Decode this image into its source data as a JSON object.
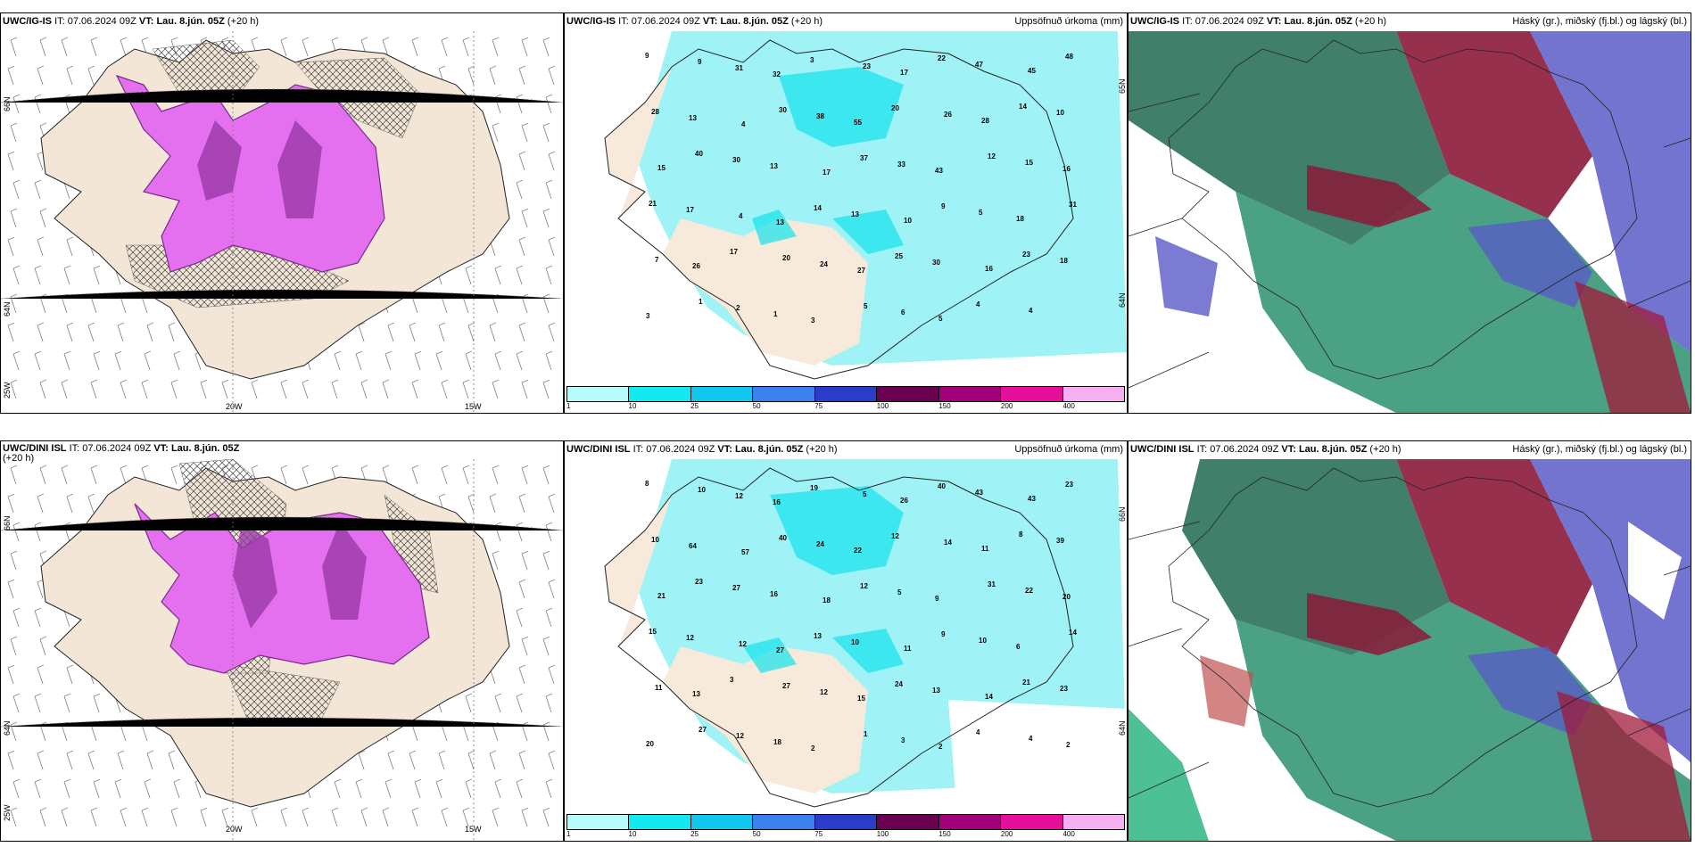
{
  "rows": [
    {
      "id": "top",
      "panels": [
        {
          "model": "UWC/IG-IS",
          "it_label": "IT:",
          "it_value": "07.06.2024 09Z",
          "vt_label": "VT:",
          "vt_value": "Lau. 8.jún. 05Z",
          "lead": "(+20 h)",
          "right_title": "",
          "lon_labels": [
            "20W",
            "15W"
          ],
          "lat_labels": [
            "66N",
            "64N",
            "25W"
          ]
        },
        {
          "model": "UWC/IG-IS",
          "it_label": "IT:",
          "it_value": "07.06.2024 09Z",
          "vt_label": "VT:",
          "vt_value": "Lau. 8.jún. 05Z",
          "lead": "(+20 h)",
          "right_title": "Uppsöfnuð úrkoma (mm)",
          "lat_labels": [
            "65N",
            "64N"
          ],
          "values": [
            "9",
            "9",
            "31",
            "32",
            "3",
            "23",
            "17",
            "22",
            "47",
            "45",
            "48",
            "28",
            "13",
            "4",
            "30",
            "38",
            "55",
            "20",
            "26",
            "28",
            "14",
            "10",
            "15",
            "40",
            "30",
            "13",
            "17",
            "37",
            "33",
            "43",
            "12",
            "15",
            "16",
            "21",
            "17",
            "4",
            "13",
            "14",
            "13",
            "10",
            "9",
            "5",
            "18",
            "31",
            "7",
            "26",
            "17",
            "20",
            "24",
            "27",
            "25",
            "30",
            "16",
            "23",
            "18",
            "3",
            "1",
            "2",
            "1",
            "3",
            "5",
            "6",
            "5",
            "4",
            "4"
          ]
        },
        {
          "model": "UWC/IG-IS",
          "it_label": "IT:",
          "it_value": "07.06.2024 09Z",
          "vt_label": "VT:",
          "vt_value": "Lau. 8.jún. 05Z",
          "lead": "(+20 h)",
          "right_title": "Háský (gr.), miðský (fj.bl.) og lágský (bl.)"
        }
      ]
    },
    {
      "id": "bottom",
      "panels": [
        {
          "model": "UWC/DINI ISL",
          "it_label": "IT:",
          "it_value": "07.06.2024 09Z",
          "vt_label": "VT:",
          "vt_value": "Lau. 8.jún. 05Z",
          "lead": "(+20 h)",
          "right_title": "",
          "lon_labels": [
            "20W",
            "15W"
          ],
          "lat_labels": [
            "66N",
            "64N",
            "25W"
          ]
        },
        {
          "model": "UWC/DINI ISL",
          "it_label": "IT:",
          "it_value": "07.06.2024 09Z",
          "vt_label": "VT:",
          "vt_value": "Lau. 8.jún. 05Z",
          "lead": "(+20 h)",
          "right_title": "Uppsöfnuð úrkoma (mm)",
          "lat_labels": [
            "66N",
            "64N"
          ],
          "values": [
            "8",
            "10",
            "12",
            "16",
            "19",
            "5",
            "26",
            "40",
            "43",
            "43",
            "23",
            "10",
            "64",
            "57",
            "40",
            "24",
            "22",
            "12",
            "14",
            "11",
            "8",
            "39",
            "21",
            "23",
            "27",
            "16",
            "18",
            "12",
            "5",
            "9",
            "31",
            "22",
            "20",
            "15",
            "12",
            "12",
            "27",
            "13",
            "10",
            "11",
            "9",
            "10",
            "6",
            "14",
            "11",
            "13",
            "3",
            "27",
            "12",
            "15",
            "24",
            "13",
            "14",
            "21",
            "23",
            "20",
            "27",
            "12",
            "18",
            "2",
            "1",
            "3",
            "2",
            "4",
            "4",
            "2"
          ]
        },
        {
          "model": "UWC/DINI ISL",
          "it_label": "IT:",
          "it_value": "07.06.2024 09Z",
          "vt_label": "VT:",
          "vt_value": "Lau. 8.jún. 05Z",
          "lead": "(+20 h)",
          "right_title": "Háský (gr.), miðský (fj.bl.) og lágský (bl.)"
        }
      ]
    }
  ],
  "legend": {
    "ticks": [
      "1",
      "10",
      "25",
      "50",
      "75",
      "100",
      "150",
      "200",
      "400"
    ],
    "colors": [
      "#b8fbfb",
      "#14e8f0",
      "#12c6ee",
      "#3c80ee",
      "#2a3cc8",
      "#6a0050",
      "#a0007a",
      "#e4109c",
      "#f4b0f0"
    ]
  },
  "colors": {
    "land": "#f3e6d6",
    "precip": "#9ff2f5",
    "precip_heavy": "#14e2ee",
    "snow_purple": "#e470f0",
    "snow_dark": "#7a2a8a",
    "cloud_high": "#1f6a50",
    "cloud_mid": "#8b1a3a",
    "cloud_low": "#5a5ac8"
  }
}
